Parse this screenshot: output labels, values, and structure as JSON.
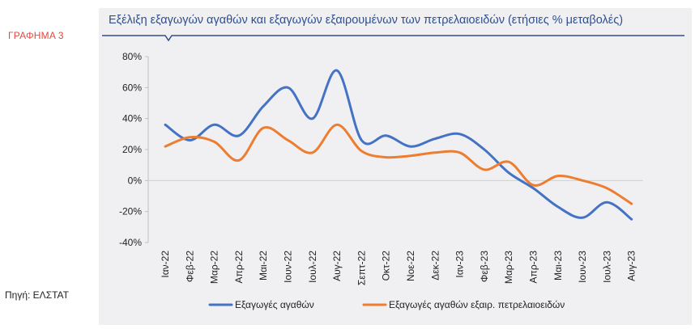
{
  "figure": {
    "label": "ΓΡΑΦΗΜΑ 3",
    "title": "Εξέλιξη εξαγωγών αγαθών και εξαγωγών εξαιρουμένων των πετρελαιοειδών (ετήσιες % μεταβολές)",
    "source": "Πηγή: ΕΛΣΤΑΤ"
  },
  "chart_data": {
    "type": "line",
    "title": "Εξέλιξη εξαγωγών αγαθών και εξαγωγών εξαιρουμένων των πετρελαιοειδών (ετήσιες % μεταβολές)",
    "xlabel": "",
    "ylabel": "",
    "ylim": [
      -40,
      80
    ],
    "yticks": [
      -40,
      -20,
      0,
      20,
      40,
      60,
      80
    ],
    "ytick_labels": [
      "-40%",
      "-20%",
      "0%",
      "20%",
      "40%",
      "60%",
      "80%"
    ],
    "grid": false,
    "legend": "bottom",
    "categories": [
      "Ιαν-22",
      "Φεβ-22",
      "Μαρ-22",
      "Απρ-22",
      "Μαι-22",
      "Ιουν-22",
      "Ιουλ-22",
      "Αυγ-22",
      "Σεπτ-22",
      "Οκτ-22",
      "Νοε-22",
      "Δεκ-22",
      "Ιαν-23",
      "Φεβ-23",
      "Μαρ-23",
      "Απρ-23",
      "Μαι-23",
      "Ιουν-23",
      "Ιουλ-23",
      "Αυγ-23"
    ],
    "series": [
      {
        "name": "Εξαγωγές αγαθών",
        "color": "#4472c4",
        "values": [
          36,
          26,
          36,
          29,
          48,
          60,
          40,
          71,
          26,
          29,
          22,
          27,
          30,
          20,
          5,
          -5,
          -17,
          -24,
          -14,
          -25
        ]
      },
      {
        "name": "Εξαγωγές αγαθών εξαιρ. πετρελαιοειδών",
        "color": "#ed7d31",
        "values": [
          22,
          28,
          25,
          13,
          34,
          26,
          18,
          36,
          19,
          15,
          16,
          18,
          18,
          7,
          12,
          -3,
          3,
          0,
          -5,
          -15
        ]
      }
    ]
  }
}
